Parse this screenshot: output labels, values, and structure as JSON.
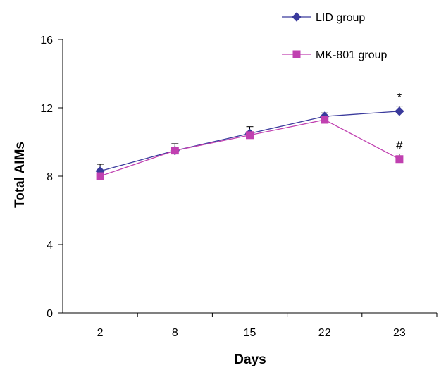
{
  "chart_data": {
    "type": "line",
    "title": "",
    "xlabel": "Days",
    "ylabel": "Total AIMs",
    "categories": [
      "2",
      "8",
      "15",
      "22",
      "23"
    ],
    "ylim": [
      0,
      16
    ],
    "yticks": [
      "0",
      "4",
      "8",
      "12",
      "16"
    ],
    "grid": false,
    "legend_position": "top-right",
    "series": [
      {
        "name": "LID group",
        "color": "#3a3a9c",
        "marker": "diamond",
        "values": [
          8.3,
          9.5,
          10.5,
          11.5,
          11.8
        ],
        "error": [
          0.4,
          0.4,
          0.4,
          0.2,
          0.3
        ]
      },
      {
        "name": "MK-801 group",
        "color": "#c040b0",
        "marker": "square",
        "values": [
          8.0,
          9.5,
          10.4,
          11.3,
          9.0
        ],
        "error": [
          0.2,
          0.2,
          0.2,
          0.2,
          0.3
        ]
      }
    ],
    "annotations": [
      {
        "text": "*",
        "category": "23",
        "series": 0
      },
      {
        "text": "#",
        "category": "23",
        "series": 1
      }
    ]
  }
}
